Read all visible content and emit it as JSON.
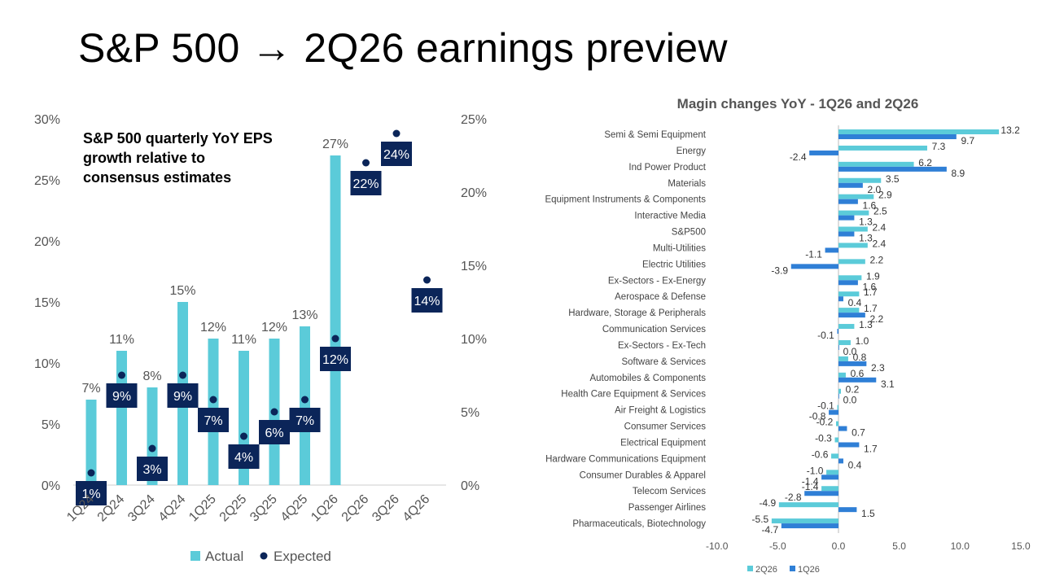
{
  "page": {
    "title": "S&P 500 → 2Q26 earnings preview"
  },
  "colors": {
    "actual": "#5BCBD9",
    "expected": "#0B2559",
    "q2": "#5BCBD9",
    "q1": "#2F7FD6",
    "axis": "#555555"
  },
  "chart_data": [
    {
      "type": "bar",
      "title": "S&P 500 quarterly YoY EPS growth relative to consensus estimates",
      "categories": [
        "1Q24",
        "2Q24",
        "3Q24",
        "4Q24",
        "1Q25",
        "2Q25",
        "3Q25",
        "4Q25",
        "1Q26",
        "2Q26",
        "3Q26",
        "4Q26"
      ],
      "series": [
        {
          "name": "Actual",
          "values": [
            7,
            11,
            8,
            15,
            12,
            11,
            12,
            13,
            27,
            null,
            null,
            null
          ],
          "labels": [
            "7%",
            "11%",
            "8%",
            "15%",
            "12%",
            "11%",
            "12%",
            "13%",
            "27%",
            "",
            "",
            ""
          ]
        },
        {
          "name": "Expected",
          "values": [
            1,
            9,
            3,
            9,
            7,
            4,
            6,
            7,
            12,
            22,
            24,
            14
          ],
          "labels": [
            "1%",
            "9%",
            "3%",
            "9%",
            "7%",
            "4%",
            "6%",
            "7%",
            "12%",
            "22%",
            "24%",
            "14%"
          ]
        }
      ],
      "left_axis": {
        "ylim": [
          0,
          30
        ],
        "ticks": [
          "0%",
          "5%",
          "10%",
          "15%",
          "20%",
          "25%",
          "30%"
        ]
      },
      "right_axis": {
        "ylim": [
          0,
          25
        ],
        "ticks": [
          "0%",
          "5%",
          "10%",
          "15%",
          "20%",
          "25%"
        ]
      },
      "legend": [
        "Actual",
        "Expected"
      ],
      "legend_position": "bottom"
    },
    {
      "type": "bar",
      "orientation": "horizontal",
      "title": "Magin changes YoY - 1Q26 and 2Q26",
      "categories": [
        "Semi & Semi Equipment",
        "Energy",
        "Ind Power Product",
        "Materials",
        "Equipment Instruments & Components",
        "Interactive Media",
        "S&P500",
        "Multi-Utilities",
        "Electric Utilities",
        "Ex-Sectors - Ex-Energy",
        "Aerospace & Defense",
        "Hardware, Storage & Peripherals",
        "Communication Services",
        "Ex-Sectors - Ex-Tech",
        "Software & Services",
        "Automobiles & Components",
        "Health Care Equipment & Services",
        "Air Freight & Logistics",
        "Consumer Services",
        "Electrical Equipment",
        "Hardware Communications Equipment",
        "Consumer Durables & Apparel",
        "Telecom Services",
        "Passenger Airlines",
        "Pharmaceuticals, Biotechnology"
      ],
      "series": [
        {
          "name": "2Q26",
          "values": [
            13.2,
            7.3,
            6.2,
            3.5,
            2.9,
            2.5,
            2.4,
            2.4,
            2.2,
            1.9,
            1.7,
            1.7,
            1.3,
            1.0,
            0.8,
            0.6,
            0.2,
            -0.1,
            -0.2,
            -0.3,
            -0.6,
            -1.0,
            -1.4,
            -4.9,
            -5.5
          ],
          "labels": [
            "13.2",
            "7.3",
            "6.2",
            "3.5",
            "2.9",
            "2.5",
            "2.4",
            "2.4",
            "2.2",
            "1.9",
            "1.7",
            "1.7",
            "1.3",
            "1.0",
            "0.8",
            "0.6",
            "0.2",
            "-0.1",
            "-0.2",
            "-0.3",
            "-0.6",
            "-1.0",
            "-1.4",
            "-4.9",
            "-5.5"
          ]
        },
        {
          "name": "1Q26",
          "values": [
            9.7,
            -2.4,
            8.9,
            2.0,
            1.6,
            1.3,
            1.3,
            -1.1,
            -3.9,
            1.6,
            0.4,
            2.2,
            -0.1,
            0.0,
            2.3,
            3.1,
            0.0,
            -0.8,
            0.7,
            1.7,
            0.4,
            -1.4,
            -2.8,
            1.5,
            -4.7
          ],
          "labels": [
            "9.7",
            "-2.4",
            "8.9",
            "2.0",
            "1.6",
            "1.3",
            "1.3",
            "-1.1",
            "-3.9",
            "1.6",
            "0.4",
            "2.2",
            "-0.1",
            "0.0",
            "2.3",
            "3.1",
            "0.0",
            "-0.8",
            "0.7",
            "1.7",
            "0.4",
            "-1.4",
            "-2.8",
            "1.5",
            "-4.7"
          ]
        }
      ],
      "xlim": [
        -10,
        15
      ],
      "ticks": [
        "-10.0",
        "-5.0",
        "0.0",
        "5.0",
        "10.0",
        "15.0"
      ],
      "legend": [
        "2Q26",
        "1Q26"
      ],
      "legend_position": "bottom-left"
    }
  ]
}
